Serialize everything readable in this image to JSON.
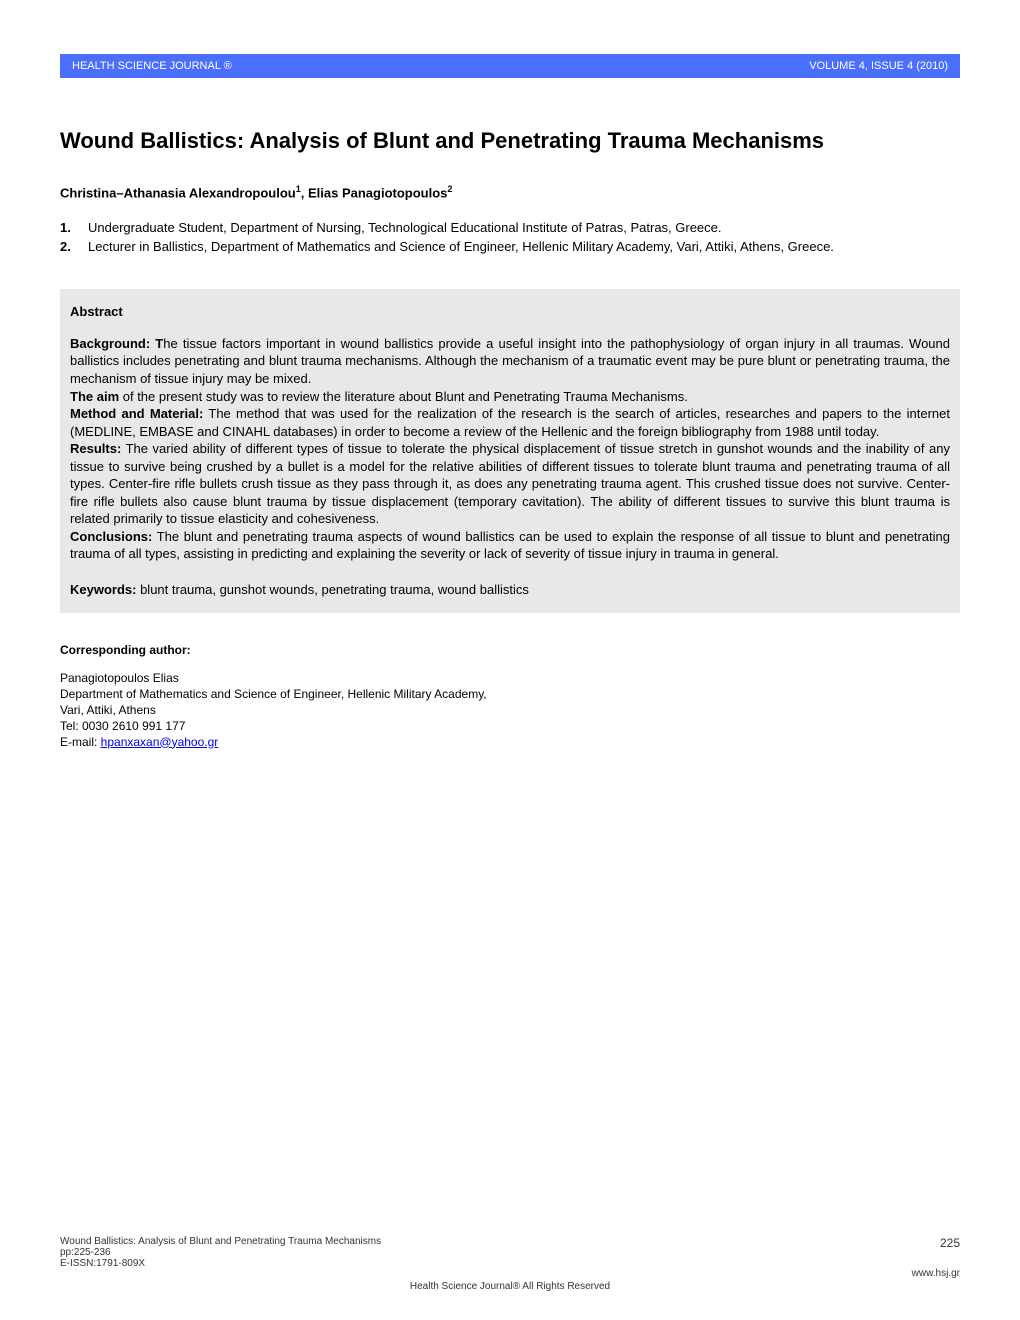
{
  "header": {
    "journal": "HEALTH SCIENCE JOURNAL ®",
    "issue": "VOLUME 4, ISSUE 4 (2010)",
    "bar_color": "#4a6fff",
    "text_color": "#ffffff"
  },
  "title": "Wound Ballistics: Analysis of Blunt and Penetrating Trauma Mechanisms",
  "authors_line": "Christina–Athanasia Alexandropoulou",
  "authors_sup1": "1",
  "authors_sep": ", Elias Panagiotopoulos",
  "authors_sup2": "2",
  "affiliations": [
    {
      "num": "1.",
      "text": "Undergraduate Student, Department of Nursing, Technological Educational Institute of Patras, Patras, Greece."
    },
    {
      "num": "2.",
      "text": "Lecturer in Ballistics, Department of Mathematics and Science of Engineer, Hellenic Military Academy, Vari, Attiki, Athens, Greece."
    }
  ],
  "abstract": {
    "heading": "Abstract",
    "background_label": "Background: T",
    "background_text": "he tissue factors important in wound ballistics provide a useful insight into the pathophysiology of organ injury in all traumas. Wound ballistics includes penetrating and blunt trauma mechanisms. Although the mechanism of a traumatic event may be pure blunt or penetrating trauma, the mechanism of tissue injury may be mixed.",
    "aim_label": "The aim",
    "aim_text": " of the present study was to review the literature about Blunt and Penetrating Trauma Mechanisms.",
    "method_label": "Method and Material:",
    "method_text": " The method that was used for the realization of the research is the search of articles, researches and papers to the internet (MEDLINE, EMBASE and CINAHL databases) in order to become a review of the Hellenic and the foreign bibliography from 1988 until today.",
    "results_label": "Results:",
    "results_text": " The varied ability of different types of tissue to tolerate the physical displacement of tissue stretch in gunshot wounds and the inability of any tissue to survive being crushed by a bullet is a model for the relative abilities of different tissues to tolerate blunt trauma and penetrating trauma of all types. Center-fire rifle bullets crush tissue as they pass through it, as does any penetrating trauma agent. This crushed tissue does not survive. Center-fire rifle bullets also cause blunt trauma by tissue displacement (temporary cavitation). The ability of different tissues to survive this blunt trauma is related primarily to tissue elasticity and cohesiveness.",
    "conclusions_label": "Conclusions:",
    "conclusions_text": " The blunt and penetrating trauma aspects of wound ballistics can be used to explain the response of all tissue to blunt and penetrating trauma of all types, assisting in predicting and explaining the severity or lack of severity of tissue injury in trauma in general.",
    "keywords_label": "Keywords:",
    "keywords_text": "  blunt trauma, gunshot wounds, penetrating trauma, wound ballistics",
    "bg_color": "#e8e8e8"
  },
  "corresponding": {
    "heading": "Corresponding author:",
    "name": "Panagiotopoulos Elias",
    "dept": "Department of Mathematics and Science of Engineer, Hellenic Military Academy,",
    "addr": "Vari, Attiki, Athens",
    "tel": "Tel: 0030 2610 991 177",
    "email_label": "E-mail: ",
    "email": "hpanxaxan@yahoo.gr"
  },
  "footer": {
    "title_line": "Wound Ballistics: Analysis of Blunt and Penetrating Trauma Mechanisms",
    "pp": "pp:225-236",
    "issn": "E-ISSN:1791-809X",
    "page_num": "225",
    "url": "www.hsj.gr",
    "rights": "Health Science Journal® All Rights Reserved"
  }
}
